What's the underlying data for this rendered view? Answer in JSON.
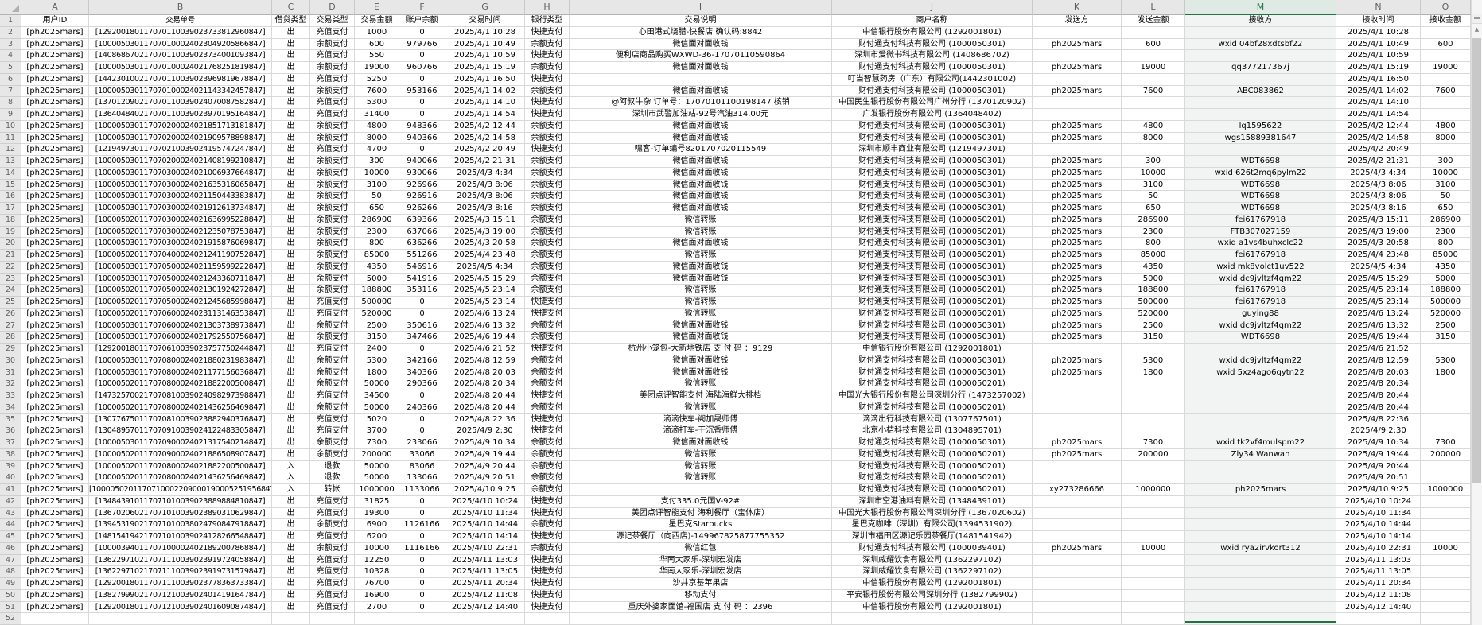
{
  "app": {
    "kind": "spreadsheet",
    "selected_column": "M",
    "first_data_row_number": 1,
    "visible_row_count": 52
  },
  "colors": {
    "selection_green": "#217346",
    "header_bg": "#e7e7e7",
    "grid_line": "#d9d9d9",
    "selected_column_tint": "#f2f4f3",
    "cell_text": "#000000"
  },
  "scrollbar": {
    "up_arrow": "▲"
  },
  "column_letters": [
    "A",
    "B",
    "C",
    "D",
    "E",
    "F",
    "G",
    "H",
    "I",
    "J",
    "K",
    "L",
    "M",
    "N",
    "O"
  ],
  "header_row": [
    "用户ID",
    "交易单号",
    "借贷类型",
    "交易类型",
    "交易金额",
    "账户余额",
    "交易时间",
    "银行类型",
    "交易说明",
    "商户名称",
    "发送方",
    "发送金额",
    "接收方",
    "接收时间",
    "接收金额"
  ],
  "rows": [
    [
      "[ph2025mars]",
      "[129200180117070110039023733812960847]",
      "出",
      "充值支付",
      "1000",
      "0",
      "2025/4/1 10:28",
      "快捷支付",
      "心田港式烧腊-快餐店 确认码:8842",
      "中信银行股份有限公司 (1292001801)",
      "",
      "",
      "",
      "2025/4/1 10:28",
      ""
    ],
    [
      "[ph2025mars]",
      "[100005030117070100024023049205866847]",
      "出",
      "余额支付",
      "600",
      "979766",
      "2025/4/1 10:49",
      "余额支付",
      "微信面对面收钱",
      "财付通支付科技有限公司 (1000050301)",
      "ph2025mars",
      "600",
      "wxid 04bf28xdtsbf22",
      "2025/4/1 10:49",
      "600"
    ],
    [
      "[ph2025mars]",
      "[140868670217070110039023734001093847]",
      "出",
      "充值支付",
      "550",
      "0",
      "2025/4/1 10:59",
      "快捷支付",
      "便利店商品购买WXWD-36-17070110590864",
      "深圳市爱微书科技有限公司 (1408686702)",
      "",
      "",
      "",
      "2025/4/1 10:59",
      ""
    ],
    [
      "[ph2025mars]",
      "[100005030117070100024021768251819847]",
      "出",
      "余额支付",
      "19000",
      "960766",
      "2025/4/1 15:19",
      "余额支付",
      "微信面对面收钱",
      "财付通支付科技有限公司 (1000050301)",
      "ph2025mars",
      "19000",
      "qq377217367j",
      "2025/4/1 15:19",
      "19000"
    ],
    [
      "[ph2025mars]",
      "[144230100217070110039023969819678847]",
      "出",
      "充值支付",
      "5250",
      "0",
      "2025/4/1 16:50",
      "快捷支付",
      "",
      "叮当智慧药房（广东）有限公司(1442301002)",
      "",
      "",
      "",
      "2025/4/1 16:50",
      ""
    ],
    [
      "[ph2025mars]",
      "[100005030117070100024021143342457847]",
      "出",
      "余额支付",
      "7600",
      "953166",
      "2025/4/1 14:02",
      "余额支付",
      "微信面对面收钱",
      "财付通支付科技有限公司 (1000050301)",
      "ph2025mars",
      "7600",
      "ABC083862",
      "2025/4/1 14:02",
      "7600"
    ],
    [
      "[ph2025mars]",
      "[137012090217070110039024070087582847]",
      "出",
      "充值支付",
      "5300",
      "0",
      "2025/4/1 14:10",
      "快捷支付",
      "@阿叔牛杂 订单号：17070101100198147 核销",
      "中国民生银行股份有限公司广州分行 (1370120902)",
      "",
      "",
      "",
      "2025/4/1 14:10",
      ""
    ],
    [
      "[ph2025mars]",
      "[136404840217070110039023970195164847]",
      "出",
      "充值支付",
      "31400",
      "0",
      "2025/4/1 14:54",
      "快捷支付",
      "深圳市武警加油站-92号汽油314.00元",
      "广发银行股份有限公司 (1364048402)",
      "",
      "",
      "",
      "2025/4/1 14:54",
      ""
    ],
    [
      "[ph2025mars]",
      "[100005030117070200024021851713181847]",
      "出",
      "余额支付",
      "4800",
      "948366",
      "2025/4/2 12:44",
      "余额支付",
      "微信面对面收钱",
      "财付通支付科技有限公司 (1000050301)",
      "ph2025mars",
      "4800",
      "lq1595622",
      "2025/4/2 12:44",
      "4800"
    ],
    [
      "[ph2025mars]",
      "[100005030117070200024021909578898847]",
      "出",
      "余额支付",
      "8000",
      "940366",
      "2025/4/2 14:58",
      "余额支付",
      "微信面对面收钱",
      "财付通支付科技有限公司 (1000050301)",
      "ph2025mars",
      "8000",
      "wgs15889381647",
      "2025/4/2 14:58",
      "8000"
    ],
    [
      "[ph2025mars]",
      "[121949730117070210039024195747247847]",
      "出",
      "充值支付",
      "4700",
      "0",
      "2025/4/2 20:49",
      "快捷支付",
      "嘿客-订单编号8201707020115549",
      "深圳市顺丰商业有限公司 (1219497301)",
      "",
      "",
      "",
      "2025/4/2 20:49",
      ""
    ],
    [
      "[ph2025mars]",
      "[100005030117070200024021408199210847]",
      "出",
      "余额支付",
      "300",
      "940066",
      "2025/4/2 21:31",
      "余额支付",
      "微信面对面收钱",
      "财付通支付科技有限公司 (1000050301)",
      "ph2025mars",
      "300",
      "WDT6698",
      "2025/4/2 21:31",
      "300"
    ],
    [
      "[ph2025mars]",
      "[100005030117070300024021006937664847]",
      "出",
      "余额支付",
      "10000",
      "930066",
      "2025/4/3 4:34",
      "余额支付",
      "微信面对面收钱",
      "财付通支付科技有限公司 (1000050301)",
      "ph2025mars",
      "10000",
      "wxid 626t2mq6pylm22",
      "2025/4/3 4:34",
      "10000"
    ],
    [
      "[ph2025mars]",
      "[100005030117070300024021635316065847]",
      "出",
      "余额支付",
      "3100",
      "926966",
      "2025/4/3 8:06",
      "余额支付",
      "微信面对面收钱",
      "财付通支付科技有限公司 (1000050301)",
      "ph2025mars",
      "3100",
      "WDT6698",
      "2025/4/3 8:06",
      "3100"
    ],
    [
      "[ph2025mars]",
      "[100005030117070300024021150443383847]",
      "出",
      "余额支付",
      "50",
      "926916",
      "2025/4/3 8:06",
      "余额支付",
      "微信面对面收钱",
      "财付通支付科技有限公司 (1000050301)",
      "ph2025mars",
      "50",
      "WDT6698",
      "2025/4/3 8:06",
      "50"
    ],
    [
      "[ph2025mars]",
      "[100005030117070300024021912613734847]",
      "出",
      "余额支付",
      "650",
      "926266",
      "2025/4/3 8:16",
      "余额支付",
      "微信面对面收钱",
      "财付通支付科技有限公司 (1000050301)",
      "ph2025mars",
      "650",
      "WDT6698",
      "2025/4/3 8:16",
      "650"
    ],
    [
      "[ph2025mars]",
      "[100005020117070300024021636995228847]",
      "出",
      "余额支付",
      "286900",
      "639366",
      "2025/4/3 15:11",
      "余额支付",
      "微信转账",
      "财付通支付科技有限公司 (1000050201)",
      "ph2025mars",
      "286900",
      "fei61767918",
      "2025/4/3 15:11",
      "286900"
    ],
    [
      "[ph2025mars]",
      "[100005020117070300024021235078753847]",
      "出",
      "余额支付",
      "2300",
      "637066",
      "2025/4/3 19:00",
      "余额支付",
      "微信转账",
      "财付通支付科技有限公司 (1000050201)",
      "ph2025mars",
      "2300",
      "FTB307027159",
      "2025/4/3 19:00",
      "2300"
    ],
    [
      "[ph2025mars]",
      "[100005030117070300024021915876069847]",
      "出",
      "余额支付",
      "800",
      "636266",
      "2025/4/3 20:58",
      "余额支付",
      "微信面对面收钱",
      "财付通支付科技有限公司 (1000050301)",
      "ph2025mars",
      "800",
      "wxid a1vs4buhxclc22",
      "2025/4/3 20:58",
      "800"
    ],
    [
      "[ph2025mars]",
      "[100005020117070400024021241190752847]",
      "出",
      "余额支付",
      "85000",
      "551266",
      "2025/4/4 23:48",
      "余额支付",
      "微信转账",
      "财付通支付科技有限公司 (1000050201)",
      "ph2025mars",
      "85000",
      "fei61767918",
      "2025/4/4 23:48",
      "85000"
    ],
    [
      "[ph2025mars]",
      "[100005030117070500024021159599222847]",
      "出",
      "余额支付",
      "4350",
      "546916",
      "2025/4/5 4:34",
      "余额支付",
      "微信面对面收钱",
      "财付通支付科技有限公司 (1000050301)",
      "ph2025mars",
      "4350",
      "wxid mk8volct1uv522",
      "2025/4/5 4:34",
      "4350"
    ],
    [
      "[ph2025mars]",
      "[100005030117070500024021243360711847]",
      "出",
      "余额支付",
      "5000",
      "541916",
      "2025/4/5 15:29",
      "余额支付",
      "微信面对面收钱",
      "财付通支付科技有限公司 (1000050301)",
      "ph2025mars",
      "5000",
      "wxid dc9jvltzf4qm22",
      "2025/4/5 15:29",
      "5000"
    ],
    [
      "[ph2025mars]",
      "[100005020117070500024021301924272847]",
      "出",
      "余额支付",
      "188800",
      "353116",
      "2025/4/5 23:14",
      "余额支付",
      "微信转账",
      "财付通支付科技有限公司 (1000050201)",
      "ph2025mars",
      "188800",
      "fei61767918",
      "2025/4/5 23:14",
      "188800"
    ],
    [
      "[ph2025mars]",
      "[100005020117070500024021245685998847]",
      "出",
      "充值支付",
      "500000",
      "0",
      "2025/4/5 23:14",
      "快捷支付",
      "微信转账",
      "财付通支付科技有限公司 (1000050201)",
      "ph2025mars",
      "500000",
      "fei61767918",
      "2025/4/5 23:14",
      "500000"
    ],
    [
      "[ph2025mars]",
      "[100005020117070600024023113146353847]",
      "出",
      "充值支付",
      "520000",
      "0",
      "2025/4/6 13:24",
      "快捷支付",
      "微信转账",
      "财付通支付科技有限公司 (1000050201)",
      "ph2025mars",
      "520000",
      "guying88",
      "2025/4/6 13:24",
      "520000"
    ],
    [
      "[ph2025mars]",
      "[100005030117070600024021303738973847]",
      "出",
      "余额支付",
      "2500",
      "350616",
      "2025/4/6 13:32",
      "余额支付",
      "微信面对面收钱",
      "财付通支付科技有限公司 (1000050301)",
      "ph2025mars",
      "2500",
      "wxid dc9jvltzf4qm22",
      "2025/4/6 13:32",
      "2500"
    ],
    [
      "[ph2025mars]",
      "[100005030117070600024021792550756847]",
      "出",
      "余额支付",
      "3150",
      "347466",
      "2025/4/6 19:44",
      "余额支付",
      "微信面对面收钱",
      "财付通支付科技有限公司 (1000050301)",
      "ph2025mars",
      "3150",
      "WDT6698",
      "2025/4/6 19:44",
      "3150"
    ],
    [
      "[ph2025mars]",
      "[129200180117070610039023757750244847]",
      "出",
      "充值支付",
      "2400",
      "0",
      "2025/4/6 21:52",
      "快捷支付",
      "杭州小笼包-大新地铁店 支 付 码 ：9129",
      "中信银行股份有限公司 (1292001801)",
      "",
      "",
      "",
      "2025/4/6 21:52",
      ""
    ],
    [
      "[ph2025mars]",
      "[100005030117070800024021880231983847]",
      "出",
      "余额支付",
      "5300",
      "342166",
      "2025/4/8 12:59",
      "余额支付",
      "微信面对面收钱",
      "财付通支付科技有限公司 (1000050301)",
      "ph2025mars",
      "5300",
      "wxid dc9jvltzf4qm22",
      "2025/4/8 12:59",
      "5300"
    ],
    [
      "[ph2025mars]",
      "[100005030117070800024021177156036847]",
      "出",
      "余额支付",
      "1800",
      "340366",
      "2025/4/8 20:03",
      "余额支付",
      "微信面对面收钱",
      "财付通支付科技有限公司 (1000050301)",
      "ph2025mars",
      "1800",
      "wxid 5xz4ago6qytn22",
      "2025/4/8 20:03",
      "1800"
    ],
    [
      "[ph2025mars]",
      "[100005020117070800024021882200500847]",
      "出",
      "余额支付",
      "50000",
      "290366",
      "2025/4/8 20:34",
      "余额支付",
      "微信转账",
      "财付通支付科技有限公司 (1000050201)",
      "",
      "",
      "",
      "2025/4/8 20:34",
      ""
    ],
    [
      "[ph2025mars]",
      "[147325700217070810039024098297398847]",
      "出",
      "充值支付",
      "34500",
      "0",
      "2025/4/8 20:44",
      "快捷支付",
      "美团点评智能支付 海陆海鲜大排档",
      "中国光大银行股份有限公司深圳分行 (1473257002)",
      "",
      "",
      "",
      "2025/4/8 20:44",
      ""
    ],
    [
      "[ph2025mars]",
      "[100005020117070800024021436256469847]",
      "出",
      "余额支付",
      "50000",
      "240366",
      "2025/4/8 20:44",
      "余额支付",
      "微信转账",
      "财付通支付科技有限公司 (1000050201)",
      "",
      "",
      "",
      "2025/4/8 20:44",
      ""
    ],
    [
      "[ph2025mars]",
      "[130776750117070810039023882940376847]",
      "出",
      "充值支付",
      "5020",
      "0",
      "2025/4/8 22:36",
      "快捷支付",
      "滴滴快车-阙加晟师傅",
      "滴滴出行科技有限公司 (1307767501)",
      "",
      "",
      "",
      "2025/4/8 22:36",
      ""
    ],
    [
      "[ph2025mars]",
      "[130489570117070910039024122483305847]",
      "出",
      "充值支付",
      "3700",
      "0",
      "2025/4/9 2:30",
      "快捷支付",
      "滴滴打车-干沉香师傅",
      "北京小桔科技有限公司 (1304895701)",
      "",
      "",
      "",
      "2025/4/9 2:30",
      ""
    ],
    [
      "[ph2025mars]",
      "[100005030117070900024021317540214847]",
      "出",
      "余额支付",
      "7300",
      "233066",
      "2025/4/9 10:34",
      "余额支付",
      "微信面对面收钱",
      "财付通支付科技有限公司 (1000050301)",
      "ph2025mars",
      "7300",
      "wxid tk2vf4mulspm22",
      "2025/4/9 10:34",
      "7300"
    ],
    [
      "[ph2025mars]",
      "[100005020117070900024021886508907847]",
      "出",
      "余额支付",
      "200000",
      "33066",
      "2025/4/9 19:44",
      "余额支付",
      "微信转账",
      "财付通支付科技有限公司 (1000050201)",
      "ph2025mars",
      "200000",
      "Zly34 Wanwan",
      "2025/4/9 19:44",
      "200000"
    ],
    [
      "[ph2025mars]",
      "[100005020117070800024021882200500847]",
      "入",
      "退款",
      "50000",
      "83066",
      "2025/4/9 20:44",
      "余额支付",
      "微信转账",
      "财付通支付科技有限公司 (1000050201)",
      "",
      "",
      "",
      "2025/4/9 20:44",
      ""
    ],
    [
      "[ph2025mars]",
      "[100005020117070800024021436256469847]",
      "入",
      "退款",
      "50000",
      "133066",
      "2025/4/9 20:51",
      "余额支付",
      "微信转账",
      "财付通支付科技有限公司 (1000050201)",
      "",
      "",
      "",
      "2025/4/9 20:51",
      ""
    ],
    [
      "[ph2025mars]",
      "[1000050201170710002209000190005251956847]",
      "入",
      "转帐",
      "1000000",
      "1133066",
      "2025/4/10 9:25",
      "余额支付",
      "",
      "财付通支付科技有限公司 (1000050201)",
      "xy273286666",
      "1000000",
      "ph2025mars",
      "2025/4/10 9:25",
      "1000000"
    ],
    [
      "[ph2025mars]",
      "[134843910117071010039023889884810847]",
      "出",
      "充值支付",
      "31825",
      "0",
      "2025/4/10 10:24",
      "快捷支付",
      "支付335.0元国V-92#",
      "深圳市空港油料有限公司 (1348439101)",
      "",
      "",
      "",
      "2025/4/10 10:24",
      ""
    ],
    [
      "[ph2025mars]",
      "[136702060217071010039023890310629847]",
      "出",
      "充值支付",
      "19300",
      "0",
      "2025/4/10 11:34",
      "快捷支付",
      "美团点评智能支付 海利餐厅（宝体店）",
      "中国光大银行股份有限公司深圳分行 (1367020602)",
      "",
      "",
      "",
      "2025/4/10 11:34",
      ""
    ],
    [
      "[ph2025mars]",
      "[139453190217071010038024790847918847]",
      "出",
      "余额支付",
      "6900",
      "1126166",
      "2025/4/10 14:44",
      "余额支付",
      "星巴克Starbucks",
      "星巴克咖啡（深圳）有限公司(1394531902)",
      "",
      "",
      "",
      "2025/4/10 14:44",
      ""
    ],
    [
      "[ph2025mars]",
      "[148154194217071010039024128266548847]",
      "出",
      "充值支付",
      "6200",
      "0",
      "2025/4/10 14:14",
      "快捷支付",
      "源记茶餐厅（向西店)-149967825877755352",
      "深圳市福田区源记乐园茶餐厅(1481541942)",
      "",
      "",
      "",
      "2025/4/10 14:14",
      ""
    ],
    [
      "[ph2025mars]",
      "[100003940117071000024021892007868847]",
      "出",
      "余额支付",
      "10000",
      "1116166",
      "2025/4/10 22:31",
      "余额支付",
      "微信红包",
      "财付通支付科技有限公司 (1000039401)",
      "ph2025mars",
      "10000",
      "wxid rya2irvkort312",
      "2025/4/10 22:31",
      "10000"
    ],
    [
      "[ph2025mars]",
      "[136229710217071110039023919724058847]",
      "出",
      "充值支付",
      "12250",
      "0",
      "2025/4/11 13:03",
      "快捷支付",
      "华南大家乐-深圳宏发店",
      "深圳威耀饮食有限公司 (1362297102)",
      "",
      "",
      "",
      "2025/4/11 13:03",
      ""
    ],
    [
      "[ph2025mars]",
      "[136229710217071110039023919731579847]",
      "出",
      "充值支付",
      "10328",
      "0",
      "2025/4/11 13:05",
      "快捷支付",
      "华南大家乐-深圳宏发店",
      "深圳威耀饮食有限公司 (1362297102)",
      "",
      "",
      "",
      "2025/4/11 13:05",
      ""
    ],
    [
      "[ph2025mars]",
      "[129200180117071110039023778363733847]",
      "出",
      "充值支付",
      "76700",
      "0",
      "2025/4/11 20:34",
      "快捷支付",
      "沙井京基苹果店",
      "中信银行股份有限公司 (1292001801)",
      "",
      "",
      "",
      "2025/4/11 20:34",
      ""
    ],
    [
      "[ph2025mars]",
      "[138279990217071210039024014191647847]",
      "出",
      "充值支付",
      "16900",
      "0",
      "2025/4/12 11:08",
      "快捷支付",
      "移动支付",
      "平安银行股份有限公司深圳分行 (1382799902)",
      "",
      "",
      "",
      "2025/4/12 11:08",
      ""
    ],
    [
      "[ph2025mars]",
      "[129200180117071210039024016090874847]",
      "出",
      "充值支付",
      "2700",
      "0",
      "2025/4/12 14:40",
      "快捷支付",
      "重庆外婆家面馆-福围店 支 付 码 ：2396",
      "中信银行股份有限公司 (1292001801)",
      "",
      "",
      "",
      "2025/4/12 14:40",
      ""
    ]
  ]
}
